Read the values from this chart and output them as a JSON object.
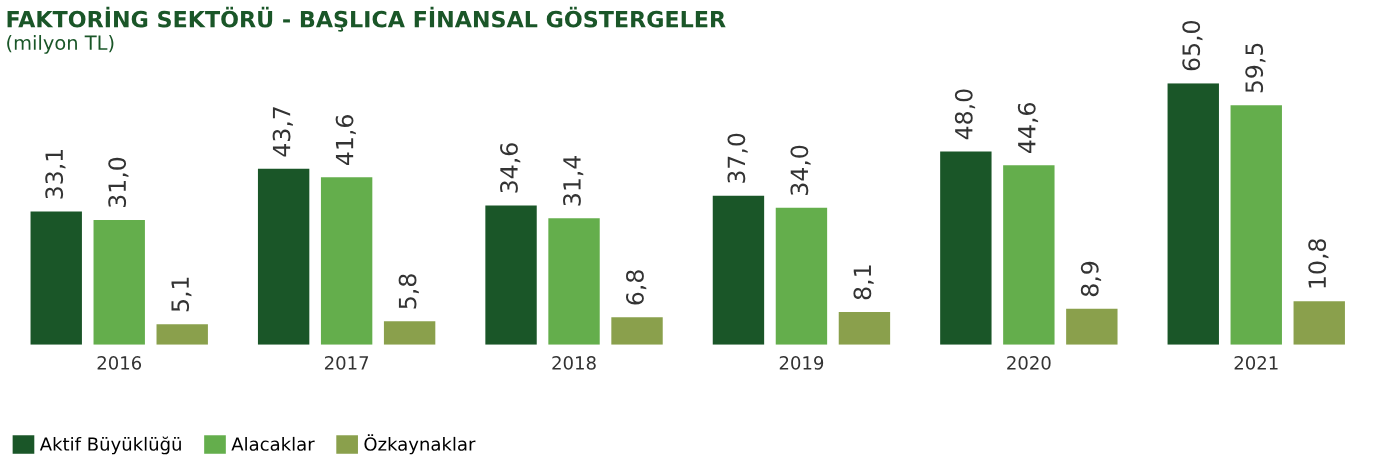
{
  "chart_data": {
    "type": "bar",
    "title": "FAKTORİNG SEKTÖRÜ - BAŞLICA FİNANSAL GÖSTERGELER",
    "subtitle": "(milyon TL)",
    "categories": [
      "2016",
      "2017",
      "2018",
      "2019",
      "2020",
      "2021"
    ],
    "series": [
      {
        "name": "Aktif Büyüklüğü",
        "color": "#1a5628",
        "values": [
          33.1,
          43.7,
          34.6,
          37.0,
          48.0,
          65.0
        ],
        "value_labels": [
          "33,1",
          "43,7",
          "34,6",
          "37,0",
          "48,0",
          "65,0"
        ]
      },
      {
        "name": "Alacaklar",
        "color": "#64ae4c",
        "values": [
          31.0,
          41.6,
          31.4,
          34.0,
          44.6,
          59.5
        ],
        "value_labels": [
          "31,0",
          "41,6",
          "31,4",
          "34,0",
          "44,6",
          "59,5"
        ]
      },
      {
        "name": "Özkaynaklar",
        "color": "#8aa04c",
        "values": [
          5.1,
          5.8,
          6.8,
          8.1,
          8.9,
          10.8
        ],
        "value_labels": [
          "5,1",
          "5,8",
          "6,8",
          "8,1",
          "8,9",
          "10,8"
        ]
      }
    ],
    "legend": "bottom left",
    "grid": false
  }
}
